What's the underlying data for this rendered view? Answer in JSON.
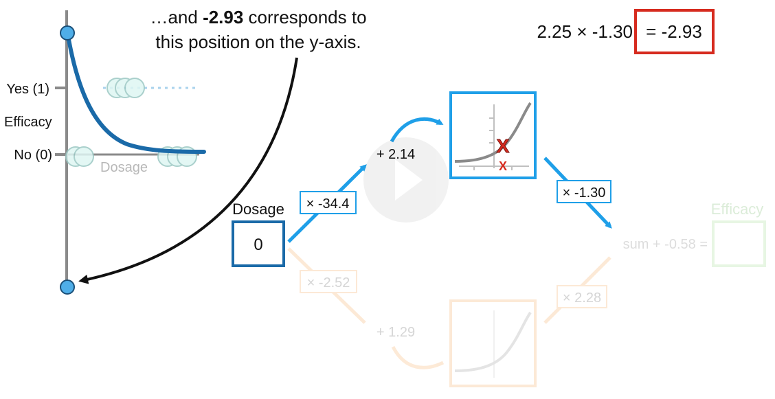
{
  "caption": {
    "line1_prefix": "…and ",
    "line1_bold": "-2.93",
    "line1_suffix": " corresponds to",
    "line2": "this position on the y-axis."
  },
  "equation": {
    "left": "2.25 × -1.30",
    "right": "= -2.93",
    "highlight_color": "#d62b1f"
  },
  "left_plot": {
    "y_label": "Efficacy",
    "yes_label": "Yes (1)",
    "no_label": "No (0)",
    "x_label": "Dosage",
    "curve_color": "#1a6aa8",
    "point_color": "#4faee8"
  },
  "network": {
    "input_label": "Dosage",
    "input_value": "0",
    "top_path": {
      "weight_in": "× -34.4",
      "bias": "+ 2.14",
      "weight_out": "× -1.30",
      "color": "#1f9fe8"
    },
    "bottom_path": {
      "weight_in": "× -2.52",
      "bias": "+ 1.29",
      "weight_out": "× 2.28",
      "color": "#f5a04a"
    },
    "output_label": "Efficacy",
    "output_formula": "sum + -0.58 =",
    "output_color": "#7fcf6a"
  }
}
